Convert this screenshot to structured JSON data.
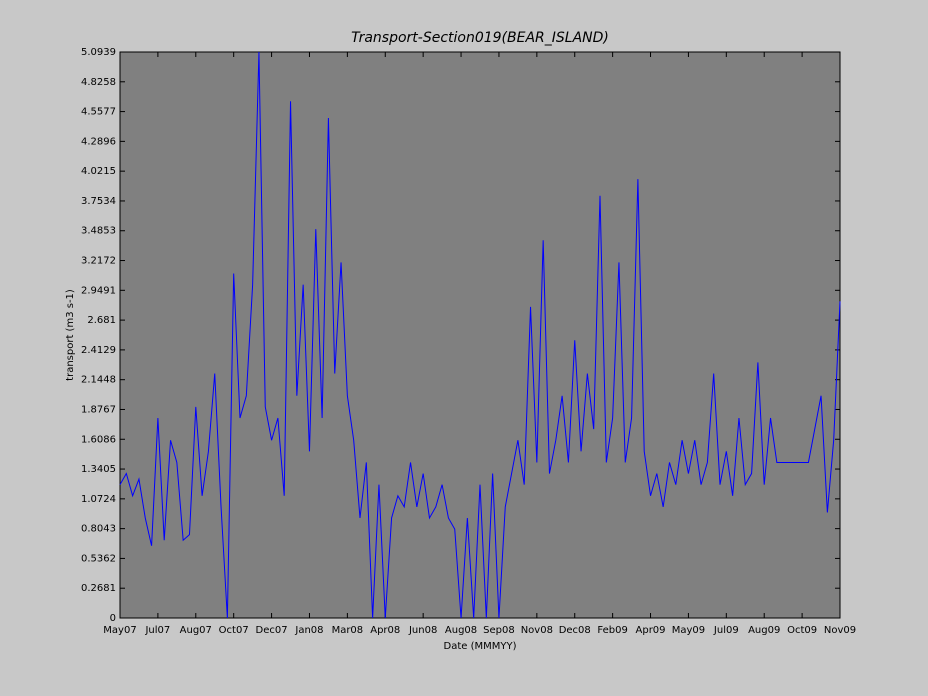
{
  "chart_data": {
    "type": "line",
    "title": "Transport-Section019(BEAR_ISLAND)",
    "x_label": "Date (MMMYY)",
    "y_label": "transport (m3 s-1)",
    "categories": [
      "May07",
      null,
      null,
      null,
      null,
      null,
      "Jul07",
      null,
      null,
      null,
      null,
      null,
      "Aug07",
      null,
      null,
      null,
      null,
      null,
      "Oct07",
      null,
      null,
      null,
      null,
      null,
      "Dec07",
      null,
      null,
      null,
      null,
      null,
      "Jan08",
      null,
      null,
      null,
      null,
      null,
      "Mar08",
      null,
      null,
      null,
      null,
      null,
      "Apr08",
      null,
      null,
      null,
      null,
      null,
      "Jun08",
      null,
      null,
      null,
      null,
      null,
      "Aug08",
      null,
      null,
      null,
      null,
      null,
      "Sep08",
      null,
      null,
      null,
      null,
      null,
      "Nov08",
      null,
      null,
      null,
      null,
      null,
      "Dec08",
      null,
      null,
      null,
      null,
      null,
      "Feb09",
      null,
      null,
      null,
      null,
      null,
      "Apr09",
      null,
      null,
      null,
      null,
      null,
      "May09",
      null,
      null,
      null,
      null,
      null,
      "Jul09",
      null,
      null,
      null,
      null,
      null,
      "Aug09",
      null,
      null,
      null,
      null,
      null,
      "Oct09",
      null,
      null,
      null,
      null,
      null,
      "Nov09"
    ],
    "series": [
      {
        "name": "transport",
        "color": "#0000ff",
        "values": [
          1.2,
          1.3,
          1.1,
          1.25,
          0.9,
          0.65,
          1.8,
          0.7,
          1.6,
          1.4,
          0.7,
          0.75,
          1.9,
          1.1,
          1.5,
          2.2,
          1.0,
          0,
          3.1,
          1.8,
          2.0,
          3.0,
          5.0939,
          1.9,
          1.6,
          1.8,
          1.1,
          4.65,
          2.0,
          3.0,
          1.5,
          3.5,
          1.8,
          4.5,
          2.2,
          3.2,
          2.0,
          1.6,
          0.9,
          1.4,
          0,
          1.2,
          0,
          0.9,
          1.1,
          1.0,
          1.4,
          1.0,
          1.3,
          0.9,
          1.0,
          1.2,
          0.9,
          0.8,
          0,
          0.9,
          0,
          1.2,
          0,
          1.3,
          0,
          1.0,
          1.3,
          1.6,
          1.2,
          2.8,
          1.4,
          3.4,
          1.3,
          1.6,
          2.0,
          1.4,
          2.5,
          1.5,
          2.2,
          1.7,
          3.8,
          1.4,
          1.8,
          3.2,
          1.4,
          1.8,
          3.95,
          1.5,
          1.1,
          1.3,
          1.0,
          1.4,
          1.2,
          1.6,
          1.3,
          1.6,
          1.2,
          1.4,
          2.2,
          1.2,
          1.5,
          1.1,
          1.8,
          1.2,
          1.3,
          2.3,
          1.2,
          1.8,
          1.4,
          1.4,
          1.4,
          1.4,
          1.4,
          1.4,
          1.7,
          2.0,
          0.95,
          1.6,
          2.85
        ]
      }
    ],
    "ylim": [
      0,
      5.0939
    ],
    "yticks": [
      0,
      0.2681,
      0.5362,
      0.8043,
      1.0724,
      1.3405,
      1.6086,
      1.8767,
      2.1448,
      2.4129,
      2.681,
      2.9491,
      3.2172,
      3.4853,
      3.7534,
      4.0215,
      4.2896,
      4.5577,
      4.8258,
      5.0939
    ],
    "grid": false
  }
}
